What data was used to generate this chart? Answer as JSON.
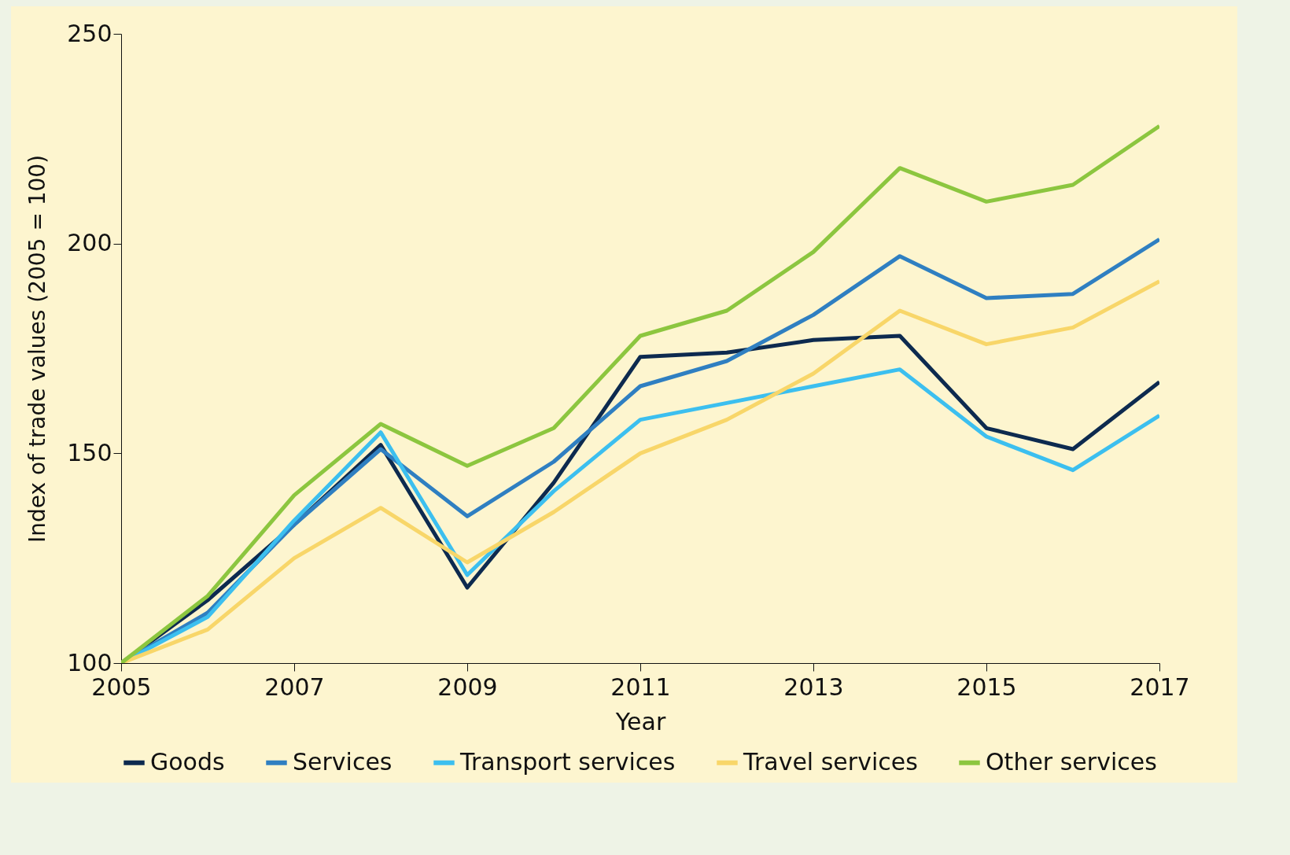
{
  "chart_data": {
    "type": "line",
    "xlabel": "Year",
    "ylabel": "Index of trade values (2005 = 100)",
    "x": [
      2005,
      2006,
      2007,
      2008,
      2009,
      2010,
      2011,
      2012,
      2013,
      2014,
      2015,
      2016,
      2017
    ],
    "xlim": [
      2005,
      2017
    ],
    "xticks": [
      2005,
      2007,
      2009,
      2011,
      2013,
      2015,
      2017
    ],
    "ylim": [
      100,
      250
    ],
    "yticks": [
      100,
      150,
      200,
      250
    ],
    "grid": false,
    "legend": "bottom",
    "series": [
      {
        "name": "Goods",
        "color": "#0d2a4f",
        "values": [
          100,
          115,
          133,
          152,
          118,
          143,
          173,
          174,
          177,
          178,
          156,
          151,
          167
        ]
      },
      {
        "name": "Services",
        "color": "#2f7fc1",
        "values": [
          100,
          112,
          133,
          151,
          135,
          148,
          166,
          172,
          183,
          197,
          187,
          188,
          201
        ]
      },
      {
        "name": "Transport services",
        "color": "#3cbfef",
        "values": [
          100,
          111,
          134,
          155,
          121,
          141,
          158,
          162,
          166,
          170,
          154,
          146,
          159
        ]
      },
      {
        "name": "Travel services",
        "color": "#f8d669",
        "values": [
          100,
          108,
          125,
          137,
          124,
          136,
          150,
          158,
          169,
          184,
          176,
          180,
          191
        ]
      },
      {
        "name": "Other services",
        "color": "#8cc63f",
        "values": [
          100,
          116,
          140,
          157,
          147,
          156,
          178,
          184,
          198,
          218,
          210,
          214,
          228
        ]
      }
    ]
  }
}
